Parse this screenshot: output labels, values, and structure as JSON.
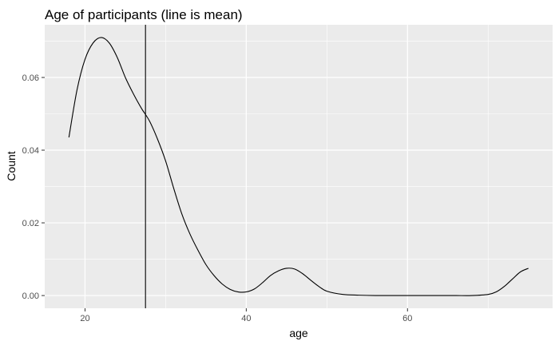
{
  "chart_data": {
    "type": "line",
    "title": "Age of participants (line is mean)",
    "xlabel": "age",
    "ylabel": "Count",
    "xlim": [
      15,
      78
    ],
    "ylim": [
      -0.0035,
      0.0745
    ],
    "x_ticks": [
      20,
      40,
      60
    ],
    "x_tick_labels": [
      "20",
      "40",
      "60"
    ],
    "y_ticks": [
      0.0,
      0.02,
      0.04,
      0.06
    ],
    "y_tick_labels": [
      "0.00",
      "0.02",
      "0.04",
      "0.06"
    ],
    "grid": true,
    "series": [
      {
        "x": [
          18,
          19,
          20,
          21,
          22,
          23,
          24,
          25,
          26,
          27,
          28,
          29,
          30,
          31,
          32,
          33,
          34,
          35,
          36,
          37,
          38,
          39,
          40,
          41,
          42,
          43,
          44,
          45,
          46,
          47,
          48,
          49,
          50,
          52,
          54,
          56,
          58,
          60,
          62,
          64,
          66,
          68,
          70,
          71,
          72,
          73,
          74,
          75
        ],
        "y": [
          0.0435,
          0.0565,
          0.065,
          0.0695,
          0.071,
          0.0695,
          0.0655,
          0.06,
          0.0555,
          0.0515,
          0.048,
          0.043,
          0.037,
          0.0295,
          0.0225,
          0.017,
          0.0125,
          0.0085,
          0.0055,
          0.0032,
          0.0017,
          0.001,
          0.001,
          0.0018,
          0.0035,
          0.0055,
          0.0068,
          0.0075,
          0.0073,
          0.006,
          0.0042,
          0.0025,
          0.0012,
          0.0003,
          0.0001,
          0.0,
          0.0,
          0.0,
          0.0,
          0.0,
          0.0,
          0.0,
          0.0003,
          0.001,
          0.0025,
          0.0045,
          0.0065,
          0.0075
        ]
      }
    ],
    "mean_line": {
      "x": 27.5
    }
  },
  "colors": {
    "panel": "#ebebeb",
    "grid_major": "#ffffff",
    "line": "#000000"
  }
}
